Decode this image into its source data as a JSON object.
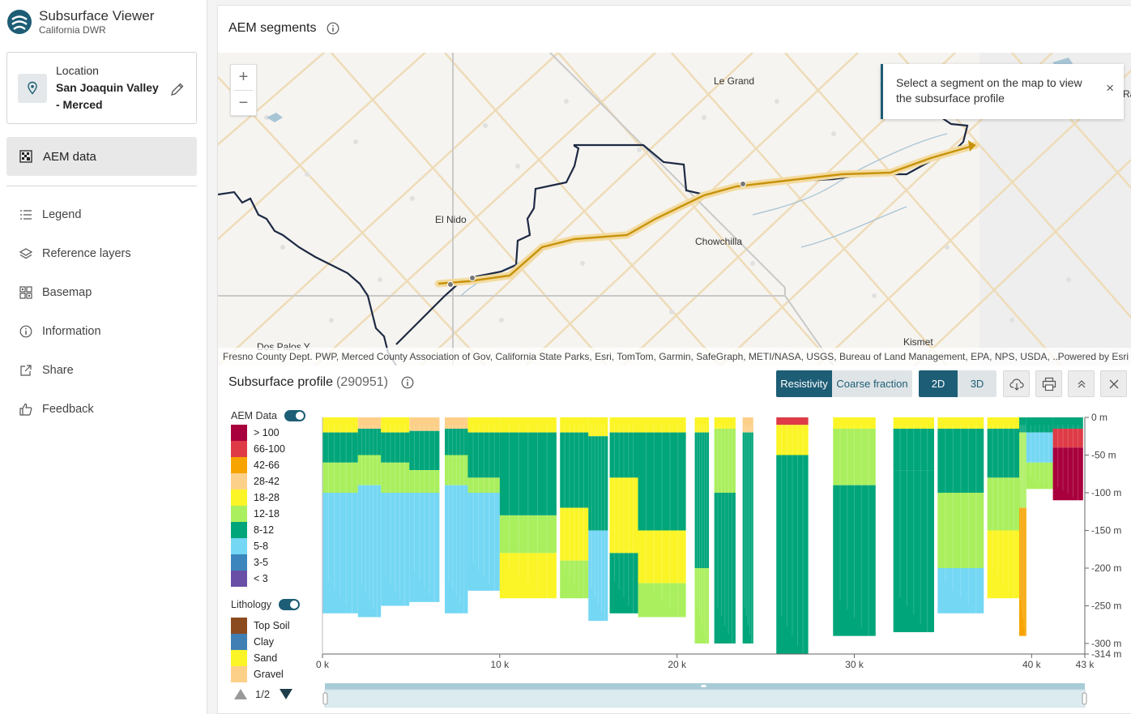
{
  "app": {
    "title": "Subsurface Viewer",
    "subtitle": "California DWR"
  },
  "location": {
    "label": "Location",
    "value": "San Joaquin Valley - Merced"
  },
  "sidebar": {
    "active_item": "AEM data",
    "items": [
      {
        "label": "Legend",
        "icon": "list-icon"
      },
      {
        "label": "Reference layers",
        "icon": "layers-icon"
      },
      {
        "label": "Basemap",
        "icon": "basemap-grid-icon"
      },
      {
        "label": "Information",
        "icon": "info-icon"
      },
      {
        "label": "Share",
        "icon": "share-icon"
      },
      {
        "label": "Feedback",
        "icon": "thumbs-up-icon"
      }
    ]
  },
  "map_panel": {
    "title": "AEM segments",
    "toast": "Select a segment on the map to view the subsurface profile",
    "labels": [
      "Le Grand",
      "El Nido",
      "Chowchilla",
      "Kismet",
      "Dos Palos Y",
      "Ra"
    ],
    "attribution": "Fresno County Dept. PWP, Merced County Association of Gov, California State Parks, Esri, TomTom, Garmin, SafeGraph, METI/NASA, USGS, Bureau of Land Management, EPA, NPS, USDA, ...",
    "powered_by": "Powered by Esri",
    "zoom_in": "+",
    "zoom_out": "−"
  },
  "profile": {
    "title": "Subsurface profile",
    "count": "(290951)",
    "buttons": {
      "resistivity": "Resistivity",
      "coarse_fraction": "Coarse fraction",
      "two_d": "2D",
      "three_d": "3D"
    },
    "legend": {
      "aem_label": "AEM Data",
      "aem_classes": [
        {
          "label": "> 100",
          "color": "#a8003c"
        },
        {
          "label": "66-100",
          "color": "#de3b47"
        },
        {
          "label": "42-66",
          "color": "#f7a400"
        },
        {
          "label": "28-42",
          "color": "#fdd08a"
        },
        {
          "label": "18-28",
          "color": "#fbf527"
        },
        {
          "label": "12-18",
          "color": "#aaef5e"
        },
        {
          "label": "8-12",
          "color": "#00a57a"
        },
        {
          "label": "5-8",
          "color": "#74d7f4"
        },
        {
          "label": "3-5",
          "color": "#3b86bd"
        },
        {
          "label": "< 3",
          "color": "#6a4fa7"
        }
      ],
      "litho_label": "Lithology",
      "litho_classes": [
        {
          "label": "Top Soil",
          "color": "#8c4b1e"
        },
        {
          "label": "Clay",
          "color": "#3f7fb4"
        },
        {
          "label": "Sand",
          "color": "#fbf527"
        },
        {
          "label": "Gravel",
          "color": "#fdd08a"
        }
      ],
      "page": "1/2"
    }
  },
  "chart_data": {
    "type": "heatmap",
    "xlabel": "",
    "ylabel": "",
    "x_ticks": [
      "0 k",
      "10 k",
      "20 k",
      "30 k",
      "40 k",
      "43 k"
    ],
    "x_tick_values": [
      0,
      10,
      20,
      30,
      40,
      43
    ],
    "y_ticks": [
      "0 m",
      "-50 m",
      "-100 m",
      "-150 m",
      "-200 m",
      "-250 m",
      "-300 m",
      "-314 m"
    ],
    "y_tick_values": [
      0,
      -50,
      -100,
      -150,
      -200,
      -250,
      -300,
      -314
    ],
    "xlim": [
      0,
      43
    ],
    "ylim": [
      -314,
      0
    ],
    "segments": [
      {
        "x0": 0,
        "x1": 2.0,
        "depth": -260,
        "layers": [
          [
            0,
            -20,
            "#fbf527"
          ],
          [
            -20,
            -60,
            "#00a57a"
          ],
          [
            -60,
            -100,
            "#aaef5e"
          ],
          [
            -100,
            -260,
            "#74d7f4"
          ]
        ]
      },
      {
        "x0": 2.0,
        "x1": 3.3,
        "depth": -265,
        "layers": [
          [
            0,
            -15,
            "#fdd08a"
          ],
          [
            -15,
            -50,
            "#00a57a"
          ],
          [
            -50,
            -90,
            "#aaef5e"
          ],
          [
            -90,
            -265,
            "#74d7f4"
          ]
        ]
      },
      {
        "x0": 3.3,
        "x1": 4.9,
        "depth": -250,
        "layers": [
          [
            0,
            -20,
            "#fbf527"
          ],
          [
            -20,
            -60,
            "#00a57a"
          ],
          [
            -60,
            -100,
            "#aaef5e"
          ],
          [
            -100,
            -250,
            "#74d7f4"
          ]
        ]
      },
      {
        "x0": 4.9,
        "x1": 6.6,
        "depth": -245,
        "layers": [
          [
            0,
            -18,
            "#fdd08a"
          ],
          [
            -18,
            -70,
            "#00a57a"
          ],
          [
            -70,
            -100,
            "#aaef5e"
          ],
          [
            -100,
            -245,
            "#74d7f4"
          ]
        ]
      },
      {
        "x0": 6.9,
        "x1": 8.2,
        "depth": -260,
        "layers": [
          [
            0,
            -15,
            "#fdd08a"
          ],
          [
            -15,
            -50,
            "#00a57a"
          ],
          [
            -50,
            -90,
            "#aaef5e"
          ],
          [
            -90,
            -260,
            "#74d7f4"
          ]
        ]
      },
      {
        "x0": 8.2,
        "x1": 10.0,
        "depth": -230,
        "layers": [
          [
            0,
            -20,
            "#fbf527"
          ],
          [
            -20,
            -80,
            "#00a57a"
          ],
          [
            -80,
            -100,
            "#aaef5e"
          ],
          [
            -100,
            -230,
            "#74d7f4"
          ]
        ]
      },
      {
        "x0": 10.0,
        "x1": 13.2,
        "depth": -240,
        "layers": [
          [
            0,
            -20,
            "#fbf527"
          ],
          [
            -20,
            -130,
            "#00a57a"
          ],
          [
            -130,
            -180,
            "#aaef5e"
          ],
          [
            -180,
            -240,
            "#fbf527"
          ]
        ]
      },
      {
        "x0": 13.4,
        "x1": 15.0,
        "depth": -240,
        "layers": [
          [
            0,
            -20,
            "#fbf527"
          ],
          [
            -20,
            -120,
            "#00a57a"
          ],
          [
            -120,
            -190,
            "#fbf527"
          ],
          [
            -190,
            -240,
            "#aaef5e"
          ]
        ]
      },
      {
        "x0": 15.0,
        "x1": 16.1,
        "depth": -270,
        "layers": [
          [
            0,
            -25,
            "#fbf527"
          ],
          [
            -25,
            -150,
            "#00a57a"
          ],
          [
            -150,
            -270,
            "#74d7f4"
          ]
        ]
      },
      {
        "x0": 16.2,
        "x1": 17.8,
        "depth": -260,
        "layers": [
          [
            0,
            -20,
            "#fbf527"
          ],
          [
            -20,
            -80,
            "#00a57a"
          ],
          [
            -80,
            -180,
            "#fbf527"
          ],
          [
            -180,
            -260,
            "#00a57a"
          ]
        ]
      },
      {
        "x0": 17.8,
        "x1": 20.5,
        "depth": -265,
        "layers": [
          [
            0,
            -20,
            "#fbf527"
          ],
          [
            -20,
            -150,
            "#00a57a"
          ],
          [
            -150,
            -220,
            "#fbf527"
          ],
          [
            -220,
            -265,
            "#aaef5e"
          ]
        ]
      },
      {
        "x0": 21.0,
        "x1": 21.8,
        "depth": -300,
        "layers": [
          [
            0,
            -20,
            "#fbf527"
          ],
          [
            -20,
            -200,
            "#00a57a"
          ],
          [
            -200,
            -300,
            "#aaef5e"
          ]
        ]
      },
      {
        "x0": 22.1,
        "x1": 23.3,
        "depth": -300,
        "layers": [
          [
            0,
            -15,
            "#fbf527"
          ],
          [
            -15,
            -100,
            "#aaef5e"
          ],
          [
            -100,
            -300,
            "#00a57a"
          ]
        ]
      },
      {
        "x0": 23.7,
        "x1": 24.3,
        "depth": -300,
        "layers": [
          [
            0,
            -20,
            "#fdd08a"
          ],
          [
            -20,
            -300,
            "#00a57a"
          ]
        ]
      },
      {
        "x0": 25.6,
        "x1": 27.4,
        "depth": -315,
        "layers": [
          [
            0,
            -10,
            "#de3b47"
          ],
          [
            -10,
            -50,
            "#fbf527"
          ],
          [
            -50,
            -315,
            "#00a57a"
          ]
        ]
      },
      {
        "x0": 28.8,
        "x1": 31.2,
        "depth": -290,
        "layers": [
          [
            0,
            -15,
            "#fbf527"
          ],
          [
            -15,
            -90,
            "#aaef5e"
          ],
          [
            -90,
            -290,
            "#00a57a"
          ]
        ]
      },
      {
        "x0": 32.2,
        "x1": 34.5,
        "depth": -285,
        "layers": [
          [
            0,
            -15,
            "#fbf527"
          ],
          [
            -15,
            -70,
            "#00a57a"
          ],
          [
            -70,
            -285,
            "#00a57a"
          ]
        ]
      },
      {
        "x0": 34.7,
        "x1": 37.3,
        "depth": -260,
        "layers": [
          [
            0,
            -15,
            "#fbf527"
          ],
          [
            -15,
            -100,
            "#00a57a"
          ],
          [
            -100,
            -200,
            "#aaef5e"
          ],
          [
            -200,
            -260,
            "#74d7f4"
          ]
        ]
      },
      {
        "x0": 37.5,
        "x1": 39.3,
        "depth": -240,
        "layers": [
          [
            0,
            -15,
            "#fbf527"
          ],
          [
            -15,
            -80,
            "#00a57a"
          ],
          [
            -80,
            -150,
            "#aaef5e"
          ],
          [
            -150,
            -240,
            "#fbf527"
          ]
        ]
      },
      {
        "x0": 39.3,
        "x1": 39.7,
        "depth": -290,
        "layers": [
          [
            0,
            -20,
            "#00a57a"
          ],
          [
            -20,
            -120,
            "#aaef5e"
          ],
          [
            -120,
            -290,
            "#f7a400"
          ]
        ]
      },
      {
        "x0": 39.7,
        "x1": 41.2,
        "depth": -95,
        "layers": [
          [
            0,
            -20,
            "#00a57a"
          ],
          [
            -20,
            -60,
            "#74d7f4"
          ],
          [
            -60,
            -95,
            "#aaef5e"
          ]
        ]
      },
      {
        "x0": 41.2,
        "x1": 42.9,
        "depth": -110,
        "layers": [
          [
            0,
            -15,
            "#00a57a"
          ],
          [
            -15,
            -40,
            "#de3b47"
          ],
          [
            -40,
            -110,
            "#a8003c"
          ]
        ]
      }
    ],
    "slider_range": [
      0,
      43
    ]
  }
}
